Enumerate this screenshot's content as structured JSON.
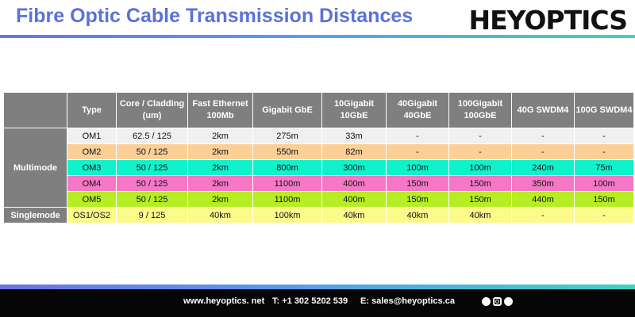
{
  "header": {
    "title": "Fibre Optic Cable Transmission Distances",
    "logo": "HEYOPTICS"
  },
  "table": {
    "columns": [
      "",
      "Type",
      "Core / Cladding (um)",
      "Fast Ethernet 100Mb",
      "Gigabit GbE",
      "10Gigabit 10GbE",
      "40Gigabit 40GbE",
      "100Gigabit 100GbE",
      "40G SWDM4",
      "100G SWDM4"
    ],
    "groups": {
      "multimode": "Multimode",
      "singlemode": "Singlemode"
    },
    "rows": [
      {
        "type": "OM1",
        "bg": "#f0f0f0",
        "cells": [
          "62.5 / 125",
          "2km",
          "275m",
          "33m",
          "-",
          "-",
          "-",
          "-"
        ]
      },
      {
        "type": "OM2",
        "bg": "#fbcf96",
        "cells": [
          "50 / 125",
          "2km",
          "550m",
          "82m",
          "-",
          "-",
          "-",
          "-"
        ]
      },
      {
        "type": "OM3",
        "bg": "#10f2cc",
        "cells": [
          "50 / 125",
          "2km",
          "800m",
          "300m",
          "100m",
          "100m",
          "240m",
          "75m"
        ]
      },
      {
        "type": "OM4",
        "bg": "#f578c6",
        "cells": [
          "50 / 125",
          "2km",
          "1100m",
          "400m",
          "150m",
          "150m",
          "350m",
          "100m"
        ]
      },
      {
        "type": "OM5",
        "bg": "#b5ee24",
        "cells": [
          "50 / 125",
          "2km",
          "1100m",
          "400m",
          "150m",
          "150m",
          "440m",
          "150m"
        ]
      },
      {
        "type": "OS1/OS2",
        "bg": "#fbfb8c",
        "cells": [
          "9 / 125",
          "40km",
          "100km",
          "40km",
          "40km",
          "40km",
          "-",
          "-"
        ]
      }
    ]
  },
  "footer": {
    "website": "www.heyoptics. net",
    "phone": "T: +1 302 5202 539",
    "email": "E: sales@heyoptics.ca",
    "social_icons": [
      "facebook-icon",
      "instagram-icon",
      "twitter-icon"
    ]
  }
}
